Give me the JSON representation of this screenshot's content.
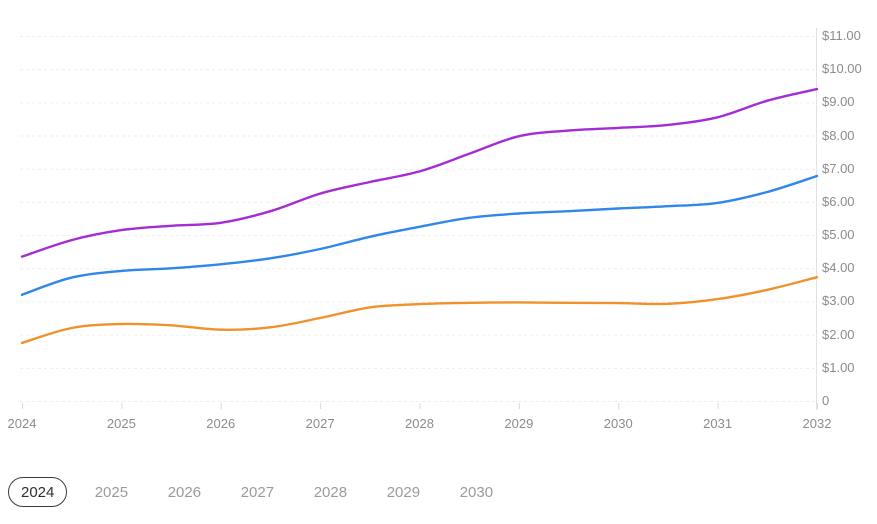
{
  "chart_data": {
    "type": "line",
    "title": "",
    "xlabel": "",
    "ylabel": "",
    "x": [
      2024,
      2024.5,
      2025,
      2025.5,
      2026,
      2026.5,
      2027,
      2027.5,
      2028,
      2028.5,
      2029,
      2029.5,
      2030,
      2030.5,
      2031,
      2031.5,
      2032
    ],
    "series": [
      {
        "name": "purple-series",
        "color": "#a42cd6",
        "values": [
          4.35,
          4.85,
          5.15,
          5.28,
          5.37,
          5.72,
          6.25,
          6.6,
          6.92,
          7.45,
          7.98,
          8.15,
          8.23,
          8.32,
          8.55,
          9.05,
          9.4
        ]
      },
      {
        "name": "blue-series",
        "color": "#2f86eb",
        "values": [
          3.2,
          3.72,
          3.92,
          4.0,
          4.12,
          4.3,
          4.58,
          4.95,
          5.25,
          5.52,
          5.65,
          5.72,
          5.8,
          5.87,
          5.97,
          6.3,
          6.78
        ]
      },
      {
        "name": "orange-series",
        "color": "#f0912b",
        "values": [
          1.75,
          2.2,
          2.32,
          2.28,
          2.15,
          2.22,
          2.5,
          2.82,
          2.92,
          2.96,
          2.97,
          2.96,
          2.95,
          2.93,
          3.07,
          3.35,
          3.73
        ]
      }
    ],
    "xlim": [
      2024,
      2032
    ],
    "ylim": [
      0,
      11
    ],
    "x_tick_labels": [
      "2024",
      "2025",
      "2026",
      "2027",
      "2028",
      "2029",
      "2030",
      "2031",
      "2032"
    ],
    "y_tick_values": [
      11,
      10,
      9,
      8,
      7,
      6,
      5,
      4,
      3,
      2,
      1,
      0
    ],
    "y_tick_labels": [
      "$11.00",
      "$10.00",
      "$9.00",
      "$8.00",
      "$7.00",
      "$6.00",
      "$5.00",
      "$4.00",
      "$3.00",
      "$2.00",
      "$1.00",
      "0"
    ],
    "grid": true,
    "legend": false
  },
  "colors": {
    "grid": "#ededed",
    "axis": "#e2e2e2",
    "tick": "#d9d9d9",
    "label": "#8c8c8c"
  },
  "year_filter": {
    "selected": "2024",
    "options": [
      "2024",
      "2025",
      "2026",
      "2027",
      "2028",
      "2029",
      "2030"
    ]
  }
}
